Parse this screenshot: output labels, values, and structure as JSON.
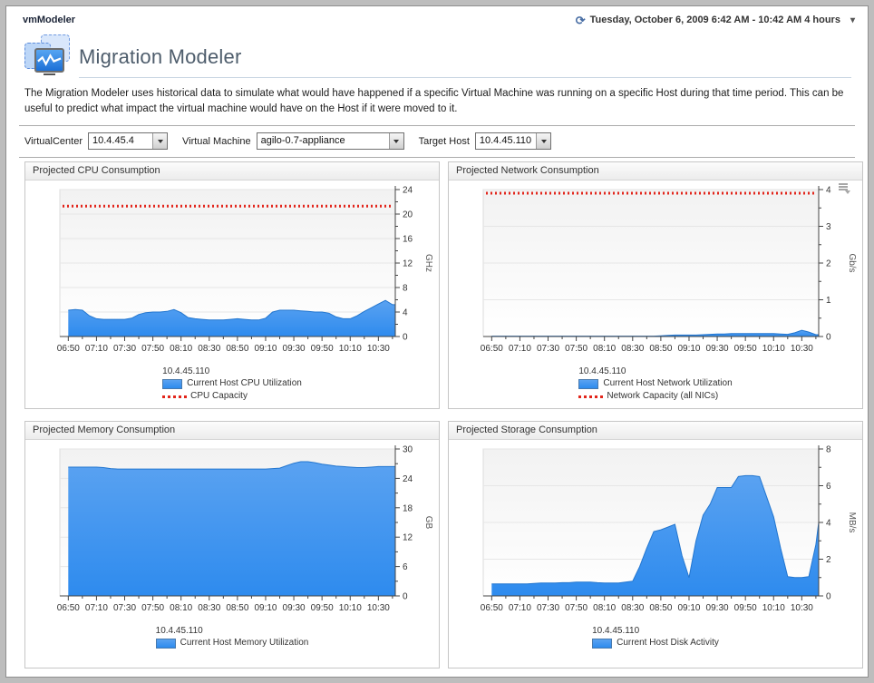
{
  "topbar": {
    "app_title": "vmModeler",
    "date_range": "Tuesday, October 6, 2009 6:42 AM - 10:42 AM 4 hours",
    "time_icon": "⟳",
    "caret_icon": "▾"
  },
  "header": {
    "title": "Migration Modeler",
    "description": "The Migration Modeler uses historical data to simulate what would have happened if a specific Virtual Machine was running on a specific Host during that time period. This can be useful to predict what impact the virtual machine would have on the Host if it were moved to it."
  },
  "filters": {
    "virtualcenter_label": "VirtualCenter",
    "virtualcenter_value": "10.4.45.4",
    "virtual_machine_label": "Virtual Machine",
    "virtual_machine_value": "agilo-0.7-appliance",
    "target_host_label": "Target Host",
    "target_host_value": "10.4.45.110"
  },
  "colors": {
    "area_top": "#5aa2f1",
    "area_bottom": "#2e8bee",
    "area_line": "#2376cf",
    "capacity_red": "#e2251b",
    "axis": "#444444",
    "grid": "#e6e6e6"
  },
  "chart_data": [
    {
      "type": "area",
      "title": "Projected CPU Consumption",
      "unit": "GHz",
      "host_label": "10.4.45.110",
      "xlim": [
        404,
        642
      ],
      "ylim": [
        0,
        24
      ],
      "ytick_major": 4,
      "ytick_minor": 2,
      "x_ticks": [
        "06:50",
        "07:10",
        "07:30",
        "07:50",
        "08:10",
        "08:30",
        "08:50",
        "09:10",
        "09:30",
        "09:50",
        "10:10",
        "10:30"
      ],
      "x_tick_pos": [
        410,
        430,
        450,
        470,
        490,
        510,
        530,
        550,
        570,
        590,
        610,
        630
      ],
      "capacity": 21.3,
      "legend": [
        {
          "type": "area",
          "label": "Current Host CPU Utilization"
        },
        {
          "type": "dotted",
          "label": "CPU Capacity"
        }
      ],
      "x": [
        410,
        415,
        420,
        425,
        430,
        435,
        440,
        445,
        450,
        455,
        460,
        465,
        470,
        475,
        480,
        485,
        490,
        495,
        500,
        505,
        510,
        515,
        520,
        525,
        530,
        535,
        540,
        545,
        550,
        555,
        560,
        565,
        570,
        575,
        580,
        585,
        590,
        595,
        600,
        605,
        610,
        615,
        620,
        625,
        630,
        635,
        640
      ],
      "values": [
        4.3,
        4.4,
        4.3,
        3.4,
        2.9,
        2.8,
        2.8,
        2.8,
        2.8,
        3.0,
        3.6,
        3.9,
        4.0,
        4.0,
        4.1,
        4.4,
        3.9,
        3.1,
        2.9,
        2.8,
        2.7,
        2.7,
        2.7,
        2.8,
        2.9,
        2.8,
        2.7,
        2.7,
        3.0,
        4.0,
        4.3,
        4.3,
        4.3,
        4.2,
        4.1,
        4.0,
        4.0,
        3.8,
        3.2,
        2.9,
        2.9,
        3.4,
        4.1,
        4.7,
        5.3,
        5.9,
        5.2
      ]
    },
    {
      "type": "area",
      "title": "Projected Network Consumption",
      "unit": "Gb/s",
      "host_label": "10.4.45.110",
      "xlim": [
        404,
        642
      ],
      "ylim": [
        0,
        4
      ],
      "ytick_major": 1,
      "ytick_minor": 0.5,
      "x_ticks": [
        "06:50",
        "07:10",
        "07:30",
        "07:50",
        "08:10",
        "08:30",
        "08:50",
        "09:10",
        "09:30",
        "09:50",
        "10:10",
        "10:30"
      ],
      "x_tick_pos": [
        410,
        430,
        450,
        470,
        490,
        510,
        530,
        550,
        570,
        590,
        610,
        630
      ],
      "capacity": 3.9,
      "legend": [
        {
          "type": "area",
          "label": "Current Host Network Utilization"
        },
        {
          "type": "dotted",
          "label": "Network Capacity (all NICs)"
        }
      ],
      "x": [
        410,
        415,
        420,
        425,
        430,
        435,
        440,
        445,
        450,
        455,
        460,
        465,
        470,
        475,
        480,
        485,
        490,
        495,
        500,
        505,
        510,
        515,
        520,
        525,
        530,
        535,
        540,
        545,
        550,
        555,
        560,
        565,
        570,
        575,
        580,
        585,
        590,
        595,
        600,
        605,
        610,
        615,
        620,
        625,
        630,
        635,
        640
      ],
      "values": [
        0.01,
        0.01,
        0.01,
        0.01,
        0.01,
        0.01,
        0.01,
        0.01,
        0.01,
        0.01,
        0.01,
        0.01,
        0.01,
        0.01,
        0.01,
        0.01,
        0.01,
        0.01,
        0.01,
        0.01,
        0.01,
        0.01,
        0.01,
        0.01,
        0.02,
        0.03,
        0.04,
        0.04,
        0.04,
        0.04,
        0.05,
        0.06,
        0.07,
        0.07,
        0.08,
        0.08,
        0.08,
        0.08,
        0.08,
        0.08,
        0.08,
        0.07,
        0.06,
        0.1,
        0.17,
        0.12,
        0.05
      ]
    },
    {
      "type": "area",
      "title": "Projected Memory Consumption",
      "unit": "GB",
      "host_label": "10.4.45.110",
      "xlim": [
        404,
        642
      ],
      "ylim": [
        0,
        30
      ],
      "ytick_major": 6,
      "ytick_minor": 3,
      "x_ticks": [
        "06:50",
        "07:10",
        "07:30",
        "07:50",
        "08:10",
        "08:30",
        "08:50",
        "09:10",
        "09:30",
        "09:50",
        "10:10",
        "10:30"
      ],
      "x_tick_pos": [
        410,
        430,
        450,
        470,
        490,
        510,
        530,
        550,
        570,
        590,
        610,
        630
      ],
      "capacity": null,
      "legend": [
        {
          "type": "area",
          "label": "Current Host Memory Utilization"
        }
      ],
      "x": [
        410,
        415,
        420,
        425,
        430,
        435,
        440,
        445,
        450,
        455,
        460,
        465,
        470,
        475,
        480,
        485,
        490,
        495,
        500,
        505,
        510,
        515,
        520,
        525,
        530,
        535,
        540,
        545,
        550,
        555,
        560,
        565,
        570,
        575,
        580,
        585,
        590,
        595,
        600,
        605,
        610,
        615,
        620,
        625,
        630,
        635,
        640
      ],
      "values": [
        26.3,
        26.3,
        26.3,
        26.3,
        26.3,
        26.2,
        26.0,
        25.9,
        25.9,
        25.9,
        25.9,
        25.9,
        25.9,
        25.9,
        25.9,
        25.9,
        25.9,
        25.9,
        25.9,
        25.9,
        25.9,
        25.9,
        25.9,
        25.9,
        25.9,
        25.9,
        25.9,
        25.9,
        25.9,
        26.0,
        26.1,
        26.6,
        27.1,
        27.4,
        27.4,
        27.2,
        26.9,
        26.7,
        26.5,
        26.4,
        26.3,
        26.2,
        26.2,
        26.3,
        26.4,
        26.4,
        26.4
      ]
    },
    {
      "type": "area",
      "title": "Projected Storage Consumption",
      "unit": "MB/s",
      "host_label": "10.4.45.110",
      "xlim": [
        404,
        642
      ],
      "ylim": [
        0,
        8
      ],
      "ytick_major": 2,
      "ytick_minor": 1,
      "x_ticks": [
        "06:50",
        "07:10",
        "07:30",
        "07:50",
        "08:10",
        "08:30",
        "08:50",
        "09:10",
        "09:30",
        "09:50",
        "10:10",
        "10:30"
      ],
      "x_tick_pos": [
        410,
        430,
        450,
        470,
        490,
        510,
        530,
        550,
        570,
        590,
        610,
        630
      ],
      "capacity": null,
      "legend": [
        {
          "type": "area",
          "label": "Current Host Disk Activity"
        }
      ],
      "x": [
        410,
        415,
        420,
        425,
        430,
        435,
        440,
        445,
        450,
        455,
        460,
        465,
        470,
        475,
        480,
        485,
        490,
        495,
        500,
        505,
        510,
        515,
        520,
        525,
        530,
        535,
        540,
        545,
        550,
        555,
        560,
        565,
        570,
        575,
        580,
        585,
        590,
        595,
        600,
        605,
        610,
        615,
        620,
        625,
        630,
        635,
        640,
        642
      ],
      "values": [
        0.65,
        0.65,
        0.65,
        0.65,
        0.65,
        0.65,
        0.68,
        0.7,
        0.7,
        0.7,
        0.72,
        0.72,
        0.75,
        0.75,
        0.75,
        0.72,
        0.7,
        0.7,
        0.7,
        0.75,
        0.8,
        1.6,
        2.6,
        3.5,
        3.6,
        3.75,
        3.9,
        2.2,
        1.0,
        3.0,
        4.4,
        5.0,
        5.9,
        5.9,
        5.9,
        6.5,
        6.55,
        6.55,
        6.5,
        5.4,
        4.3,
        2.6,
        1.05,
        1.0,
        1.0,
        1.05,
        2.8,
        4.0
      ]
    }
  ]
}
